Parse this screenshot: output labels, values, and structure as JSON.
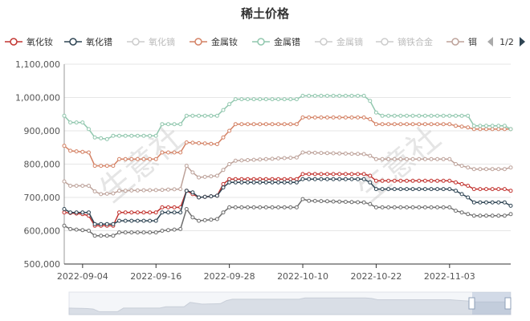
{
  "chart_data": {
    "type": "line",
    "title": "稀土价格",
    "x_ticks": [
      "2022-09-04",
      "2022-09-16",
      "2022-09-28",
      "2022-10-10",
      "2022-10-22",
      "2022-11-03"
    ],
    "ylim": [
      500000,
      1100000
    ],
    "y_ticks": [
      "500,000",
      "600,000",
      "700,000",
      "800,000",
      "900,000",
      "1,000,000",
      "1,100,000"
    ],
    "legend_page": "1/2",
    "watermark": "生意社",
    "series": [
      {
        "name": "氧化钕",
        "color": "#c23531",
        "visible": true,
        "points": [
          [
            0,
            655000
          ],
          [
            3,
            650000
          ],
          [
            4,
            645000
          ],
          [
            5,
            615000
          ],
          [
            8,
            615000
          ],
          [
            9,
            655000
          ],
          [
            15,
            655000
          ],
          [
            16,
            670000
          ],
          [
            19,
            670000
          ],
          [
            20,
            720000
          ],
          [
            21,
            710000
          ],
          [
            22,
            700000
          ],
          [
            25,
            705000
          ],
          [
            26,
            740000
          ],
          [
            27,
            755000
          ],
          [
            38,
            755000
          ],
          [
            39,
            770000
          ],
          [
            49,
            770000
          ],
          [
            50,
            765000
          ],
          [
            51,
            750000
          ],
          [
            63,
            750000
          ],
          [
            64,
            745000
          ],
          [
            66,
            735000
          ],
          [
            67,
            725000
          ],
          [
            72,
            725000
          ],
          [
            73,
            720000
          ]
        ]
      },
      {
        "name": "氧化镨",
        "color": "#2f4554",
        "visible": true,
        "points": [
          [
            0,
            665000
          ],
          [
            1,
            655000
          ],
          [
            4,
            655000
          ],
          [
            5,
            620000
          ],
          [
            8,
            620000
          ],
          [
            9,
            630000
          ],
          [
            15,
            630000
          ],
          [
            16,
            655000
          ],
          [
            19,
            655000
          ],
          [
            20,
            720000
          ],
          [
            21,
            715000
          ],
          [
            22,
            700000
          ],
          [
            25,
            705000
          ],
          [
            26,
            730000
          ],
          [
            27,
            745000
          ],
          [
            38,
            745000
          ],
          [
            39,
            755000
          ],
          [
            49,
            755000
          ],
          [
            50,
            745000
          ],
          [
            51,
            725000
          ],
          [
            63,
            725000
          ],
          [
            64,
            720000
          ],
          [
            66,
            700000
          ],
          [
            67,
            685000
          ],
          [
            72,
            685000
          ],
          [
            73,
            675000
          ]
        ]
      },
      {
        "name": "氧化镝",
        "color": "#cccccc",
        "visible": false,
        "points": []
      },
      {
        "name": "金属钕",
        "color": "#d48265",
        "visible": true,
        "points": [
          [
            0,
            855000
          ],
          [
            1,
            840000
          ],
          [
            4,
            835000
          ],
          [
            5,
            795000
          ],
          [
            8,
            795000
          ],
          [
            9,
            815000
          ],
          [
            15,
            815000
          ],
          [
            16,
            835000
          ],
          [
            19,
            835000
          ],
          [
            20,
            865000
          ],
          [
            25,
            860000
          ],
          [
            27,
            900000
          ],
          [
            28,
            920000
          ],
          [
            38,
            920000
          ],
          [
            39,
            940000
          ],
          [
            49,
            940000
          ],
          [
            50,
            935000
          ],
          [
            51,
            920000
          ],
          [
            63,
            920000
          ],
          [
            64,
            915000
          ],
          [
            66,
            910000
          ],
          [
            67,
            905000
          ],
          [
            73,
            905000
          ]
        ]
      },
      {
        "name": "金属镨",
        "color": "#91c7ae",
        "visible": true,
        "points": [
          [
            0,
            945000
          ],
          [
            1,
            925000
          ],
          [
            3,
            925000
          ],
          [
            4,
            905000
          ],
          [
            5,
            880000
          ],
          [
            7,
            875000
          ],
          [
            8,
            885000
          ],
          [
            15,
            885000
          ],
          [
            16,
            920000
          ],
          [
            19,
            920000
          ],
          [
            20,
            945000
          ],
          [
            25,
            945000
          ],
          [
            27,
            980000
          ],
          [
            28,
            995000
          ],
          [
            38,
            995000
          ],
          [
            39,
            1005000
          ],
          [
            49,
            1005000
          ],
          [
            50,
            990000
          ],
          [
            51,
            955000
          ],
          [
            52,
            945000
          ],
          [
            66,
            945000
          ],
          [
            67,
            915000
          ],
          [
            72,
            915000
          ],
          [
            73,
            905000
          ]
        ]
      },
      {
        "name": "金属镝",
        "color": "#cccccc",
        "visible": false,
        "points": []
      },
      {
        "name": "镝铁合金",
        "color": "#cccccc",
        "visible": false,
        "points": []
      },
      {
        "name": "铒",
        "color": "#bda29a",
        "visible": true,
        "points": [
          [
            0,
            748000
          ],
          [
            1,
            735000
          ],
          [
            4,
            735000
          ],
          [
            5,
            718000
          ],
          [
            6,
            710000
          ],
          [
            8,
            712000
          ],
          [
            9,
            720000
          ],
          [
            15,
            722000
          ],
          [
            19,
            725000
          ],
          [
            20,
            795000
          ],
          [
            21,
            775000
          ],
          [
            22,
            760000
          ],
          [
            25,
            765000
          ],
          [
            27,
            800000
          ],
          [
            28,
            810000
          ],
          [
            38,
            820000
          ],
          [
            39,
            835000
          ],
          [
            49,
            830000
          ],
          [
            50,
            825000
          ],
          [
            51,
            815000
          ],
          [
            63,
            815000
          ],
          [
            64,
            800000
          ],
          [
            66,
            790000
          ],
          [
            67,
            785000
          ],
          [
            72,
            785000
          ],
          [
            73,
            790000
          ]
        ]
      },
      {
        "name": "series_bottom",
        "color": "#6e6e6e",
        "visible": true,
        "unlisted": true,
        "points": [
          [
            0,
            615000
          ],
          [
            1,
            605000
          ],
          [
            4,
            600000
          ],
          [
            5,
            585000
          ],
          [
            8,
            585000
          ],
          [
            9,
            595000
          ],
          [
            15,
            595000
          ],
          [
            16,
            600000
          ],
          [
            19,
            605000
          ],
          [
            20,
            665000
          ],
          [
            21,
            640000
          ],
          [
            22,
            630000
          ],
          [
            25,
            635000
          ],
          [
            26,
            655000
          ],
          [
            27,
            670000
          ],
          [
            38,
            670000
          ],
          [
            39,
            695000
          ],
          [
            40,
            690000
          ],
          [
            49,
            685000
          ],
          [
            50,
            680000
          ],
          [
            51,
            670000
          ],
          [
            63,
            670000
          ],
          [
            64,
            660000
          ],
          [
            66,
            650000
          ],
          [
            67,
            645000
          ],
          [
            72,
            645000
          ],
          [
            73,
            650000
          ]
        ]
      }
    ]
  }
}
